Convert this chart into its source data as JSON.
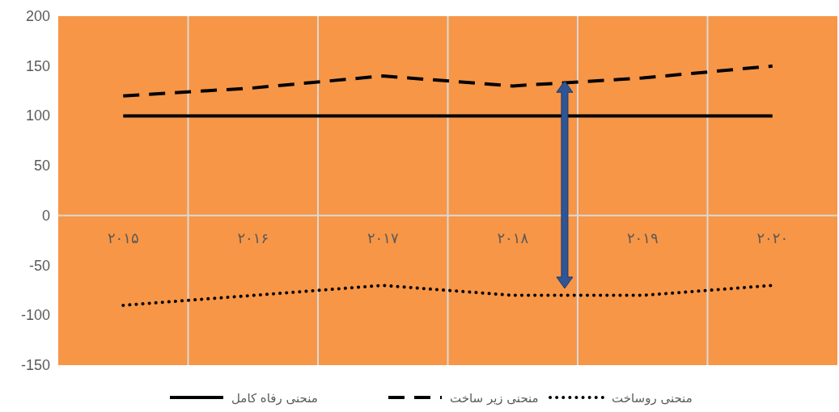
{
  "chart_data": {
    "type": "line",
    "categories": [
      "۲۰۱۵",
      "۲۰۱۶",
      "۲۰۱۷",
      "۲۰۱۸",
      "۲۰۱۹",
      "۲۰۲۰"
    ],
    "series": [
      {
        "name": "منحنی رفاه کامل",
        "color": "#000000",
        "line_style": "solid",
        "values": [
          100,
          100,
          100,
          100,
          100,
          100
        ]
      },
      {
        "name": "منحنی زیر ساخت",
        "color": "#000000",
        "line_style": "dashed",
        "values": [
          120,
          128,
          140,
          130,
          138,
          150
        ]
      },
      {
        "name": "منحنی روساخت",
        "color": "#000000",
        "line_style": "dotted",
        "values": [
          -90,
          -80,
          -70,
          -80,
          -80,
          -70
        ]
      }
    ],
    "ylim": [
      -150,
      200
    ],
    "yticks": [
      -150,
      -100,
      -50,
      0,
      50,
      100,
      150,
      200
    ],
    "grid": "x",
    "legend": "bottom"
  }
}
